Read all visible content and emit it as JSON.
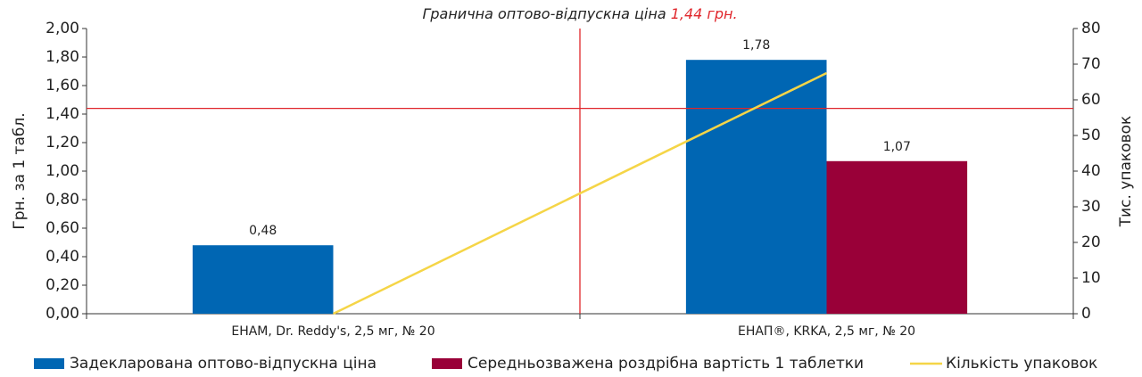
{
  "chart_data": {
    "type": "bar",
    "threshold": {
      "label": "Гранична оптово-відпускна ціна",
      "value": 1.44,
      "value_label": "1,44 грн.",
      "color": "#e0262b"
    },
    "ylabel": "Грн. за 1 табл.",
    "y2label": "Тис. упаковок",
    "categories": [
      "ЕНАМ, Dr. Reddy's, 2,5 мг, № 20",
      "ЕНАП®, KRKA, 2,5 мг, № 20"
    ],
    "series": [
      {
        "name": "Задекларована оптово-відпускна ціна",
        "type": "bar",
        "color": "#0066b3",
        "values": [
          0.48,
          1.78
        ],
        "value_labels": [
          "0,48",
          "1,78"
        ]
      },
      {
        "name": "Середньозважена роздрібна вартість 1 таблетки",
        "type": "bar",
        "color": "#990038",
        "values": [
          null,
          1.07
        ],
        "value_labels": [
          null,
          "1,07"
        ]
      },
      {
        "name": "Кількість упаковок",
        "type": "line",
        "color": "#f5d547",
        "axis": "y2",
        "values": [
          0,
          67.5
        ]
      }
    ],
    "ylim": [
      0,
      2
    ],
    "yticks": [
      {
        "value": 0,
        "label": "0,00"
      },
      {
        "value": 0.2,
        "label": "0,20"
      },
      {
        "value": 0.4,
        "label": "0,40"
      },
      {
        "value": 0.6,
        "label": "0,60"
      },
      {
        "value": 0.8,
        "label": "0,80"
      },
      {
        "value": 1.0,
        "label": "1,00"
      },
      {
        "value": 1.2,
        "label": "1,20"
      },
      {
        "value": 1.4,
        "label": "1,40"
      },
      {
        "value": 1.6,
        "label": "1,60"
      },
      {
        "value": 1.8,
        "label": "1,80"
      },
      {
        "value": 2.0,
        "label": "2,00"
      }
    ],
    "y2lim": [
      0,
      80
    ],
    "y2ticks": [
      0,
      10,
      20,
      30,
      40,
      50,
      60,
      70,
      80
    ]
  }
}
